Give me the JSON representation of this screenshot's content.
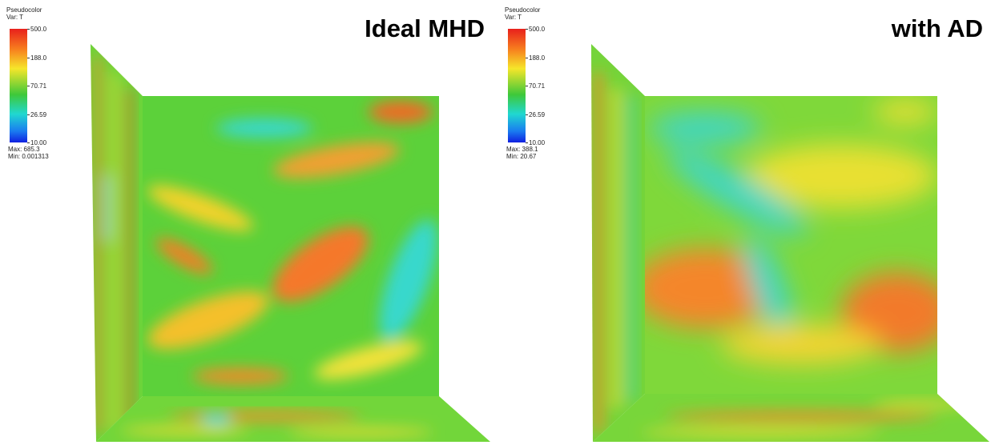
{
  "panels": [
    {
      "title": "Ideal MHD",
      "legend": {
        "name": "Pseudocolor",
        "var": "Var: T",
        "ticks": [
          "500.0",
          "188.0",
          "70.71",
          "26.59",
          "10.00"
        ],
        "max": "Max: 685.3",
        "min": "Min: 0.001313"
      }
    },
    {
      "title": "with AD",
      "legend": {
        "name": "Pseudocolor",
        "var": "Var: T",
        "ticks": [
          "500.0",
          "188.0",
          "70.71",
          "26.59",
          "10.00"
        ],
        "max": "Max: 388.1",
        "min": "Min: 20.67"
      }
    }
  ]
}
